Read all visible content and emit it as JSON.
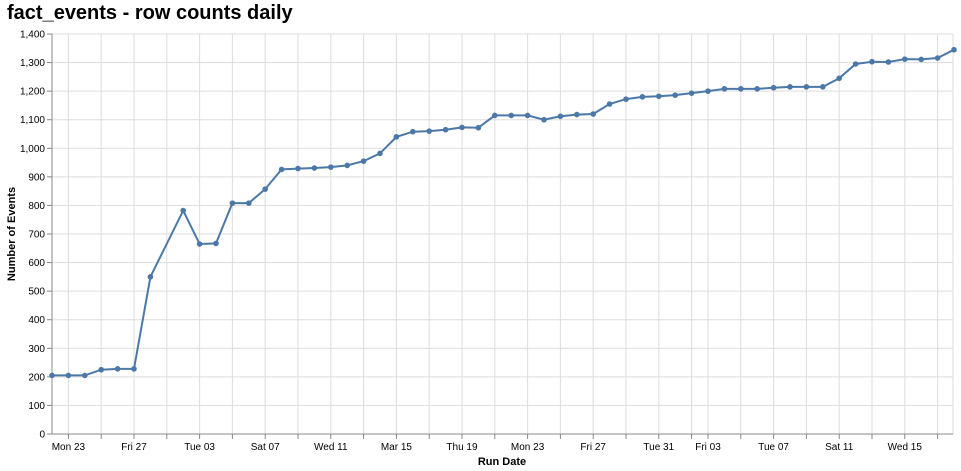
{
  "chart_data": {
    "type": "line",
    "title": "fact_events - row counts daily",
    "xlabel": "Run Date",
    "ylabel": "Number of Events",
    "ylim": [
      0,
      1400
    ],
    "grid": true,
    "legend": null,
    "y_ticks": [
      0,
      100,
      200,
      300,
      400,
      500,
      600,
      700,
      800,
      900,
      1000,
      1100,
      1200,
      1300,
      1400
    ],
    "y_tick_labels": [
      "0",
      "100",
      "200",
      "300",
      "400",
      "500",
      "600",
      "700",
      "800",
      "900",
      "1,000",
      "1,100",
      "1,200",
      "1,300",
      "1,400"
    ],
    "x_tick_labels": [
      {
        "label": "Mon 23",
        "day": 1
      },
      {
        "label": "Fri 27",
        "day": 5
      },
      {
        "label": "Tue 03",
        "day": 9
      },
      {
        "label": "Sat 07",
        "day": 13
      },
      {
        "label": "Wed 11",
        "day": 17
      },
      {
        "label": "Mar 15",
        "day": 21
      },
      {
        "label": "Thu 19",
        "day": 25
      },
      {
        "label": "Mon 23",
        "day": 29
      },
      {
        "label": "Fri 27",
        "day": 33
      },
      {
        "label": "Tue 31",
        "day": 37
      },
      {
        "label": "Fri 03",
        "day": 40
      },
      {
        "label": "Tue 07",
        "day": 44
      },
      {
        "label": "Sat 11",
        "day": 48
      },
      {
        "label": "Wed 15",
        "day": 52
      }
    ],
    "x_minor_ticks": [
      3,
      7,
      11,
      15,
      19,
      23,
      27,
      31,
      35,
      39,
      42,
      46,
      50,
      54
    ],
    "series": [
      {
        "name": "Number of Events",
        "color": "#4c78a8",
        "points": [
          {
            "day": 0,
            "value": 205
          },
          {
            "day": 1,
            "value": 205
          },
          {
            "day": 2,
            "value": 205
          },
          {
            "day": 3,
            "value": 225
          },
          {
            "day": 4,
            "value": 228
          },
          {
            "day": 5,
            "value": 228
          },
          {
            "day": 6,
            "value": 550
          },
          {
            "day": 8,
            "value": 782
          },
          {
            "day": 9,
            "value": 665
          },
          {
            "day": 10,
            "value": 667
          },
          {
            "day": 11,
            "value": 808
          },
          {
            "day": 12,
            "value": 808
          },
          {
            "day": 13,
            "value": 857
          },
          {
            "day": 14,
            "value": 926
          },
          {
            "day": 15,
            "value": 929
          },
          {
            "day": 16,
            "value": 931
          },
          {
            "day": 17,
            "value": 934
          },
          {
            "day": 18,
            "value": 940
          },
          {
            "day": 19,
            "value": 955
          },
          {
            "day": 20,
            "value": 982
          },
          {
            "day": 21,
            "value": 1040
          },
          {
            "day": 22,
            "value": 1058
          },
          {
            "day": 23,
            "value": 1060
          },
          {
            "day": 24,
            "value": 1065
          },
          {
            "day": 25,
            "value": 1073
          },
          {
            "day": 26,
            "value": 1072
          },
          {
            "day": 27,
            "value": 1115
          },
          {
            "day": 28,
            "value": 1115
          },
          {
            "day": 29,
            "value": 1115
          },
          {
            "day": 30,
            "value": 1100
          },
          {
            "day": 31,
            "value": 1112
          },
          {
            "day": 32,
            "value": 1118
          },
          {
            "day": 33,
            "value": 1120
          },
          {
            "day": 34,
            "value": 1155
          },
          {
            "day": 35,
            "value": 1172
          },
          {
            "day": 36,
            "value": 1180
          },
          {
            "day": 37,
            "value": 1182
          },
          {
            "day": 38,
            "value": 1186
          },
          {
            "day": 39,
            "value": 1193
          },
          {
            "day": 40,
            "value": 1200
          },
          {
            "day": 41,
            "value": 1208
          },
          {
            "day": 42,
            "value": 1208
          },
          {
            "day": 43,
            "value": 1208
          },
          {
            "day": 44,
            "value": 1212
          },
          {
            "day": 45,
            "value": 1215
          },
          {
            "day": 46,
            "value": 1215
          },
          {
            "day": 47,
            "value": 1215
          },
          {
            "day": 48,
            "value": 1245
          },
          {
            "day": 49,
            "value": 1295
          },
          {
            "day": 50,
            "value": 1303
          },
          {
            "day": 51,
            "value": 1302
          },
          {
            "day": 52,
            "value": 1312
          },
          {
            "day": 53,
            "value": 1311
          },
          {
            "day": 54,
            "value": 1316
          },
          {
            "day": 55,
            "value": 1345
          }
        ]
      }
    ]
  }
}
